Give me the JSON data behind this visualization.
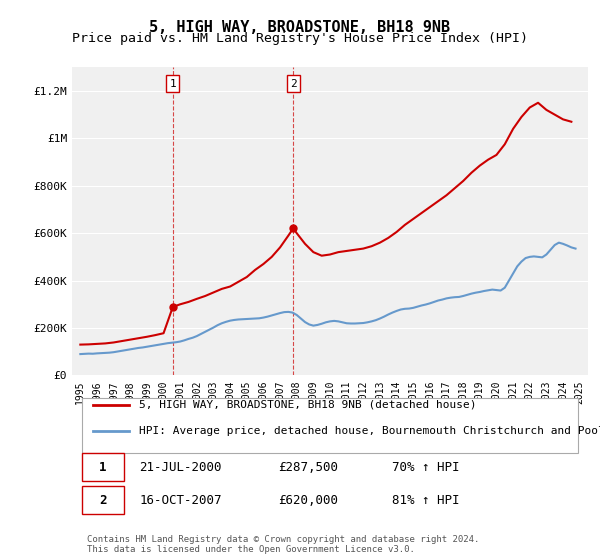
{
  "title": "5, HIGH WAY, BROADSTONE, BH18 9NB",
  "subtitle": "Price paid vs. HM Land Registry's House Price Index (HPI)",
  "title_fontsize": 11,
  "subtitle_fontsize": 9.5,
  "background_color": "#ffffff",
  "plot_bg_color": "#f0f0f0",
  "red_line_color": "#cc0000",
  "blue_line_color": "#6699cc",
  "vline_color": "#cc0000",
  "grid_color": "#ffffff",
  "legend_label_red": "5, HIGH WAY, BROADSTONE, BH18 9NB (detached house)",
  "legend_label_blue": "HPI: Average price, detached house, Bournemouth Christchurch and Poole",
  "sale1_date_num": 2000.55,
  "sale1_price": 287500,
  "sale1_label": "1",
  "sale2_date_num": 2007.79,
  "sale2_price": 620000,
  "sale2_label": "2",
  "annotation1": "1     21-JUL-2000     £287,500     70% ↑ HPI",
  "annotation2": "2     16-OCT-2007     £620,000     81% ↑ HPI",
  "footnote": "Contains HM Land Registry data © Crown copyright and database right 2024.\nThis data is licensed under the Open Government Licence v3.0.",
  "ylim": [
    0,
    1300000
  ],
  "xlim_start": 1994.5,
  "xlim_end": 2025.5,
  "yticks": [
    0,
    200000,
    400000,
    600000,
    800000,
    1000000,
    1200000
  ],
  "ytick_labels": [
    "£0",
    "£200K",
    "£400K",
    "£600K",
    "£800K",
    "£1M",
    "£1.2M"
  ],
  "xtick_years": [
    1995,
    1996,
    1997,
    1998,
    1999,
    2000,
    2001,
    2002,
    2003,
    2004,
    2005,
    2006,
    2007,
    2008,
    2009,
    2010,
    2011,
    2012,
    2013,
    2014,
    2015,
    2016,
    2017,
    2018,
    2019,
    2020,
    2021,
    2022,
    2023,
    2024,
    2025
  ],
  "hpi_years": [
    1995,
    1995.25,
    1995.5,
    1995.75,
    1996,
    1996.25,
    1996.5,
    1996.75,
    1997,
    1997.25,
    1997.5,
    1997.75,
    1998,
    1998.25,
    1998.5,
    1998.75,
    1999,
    1999.25,
    1999.5,
    1999.75,
    2000,
    2000.25,
    2000.5,
    2000.75,
    2001,
    2001.25,
    2001.5,
    2001.75,
    2002,
    2002.25,
    2002.5,
    2002.75,
    2003,
    2003.25,
    2003.5,
    2003.75,
    2004,
    2004.25,
    2004.5,
    2004.75,
    2005,
    2005.25,
    2005.5,
    2005.75,
    2006,
    2006.25,
    2006.5,
    2006.75,
    2007,
    2007.25,
    2007.5,
    2007.75,
    2008,
    2008.25,
    2008.5,
    2008.75,
    2009,
    2009.25,
    2009.5,
    2009.75,
    2010,
    2010.25,
    2010.5,
    2010.75,
    2011,
    2011.25,
    2011.5,
    2011.75,
    2012,
    2012.25,
    2012.5,
    2012.75,
    2013,
    2013.25,
    2013.5,
    2013.75,
    2014,
    2014.25,
    2014.5,
    2014.75,
    2015,
    2015.25,
    2015.5,
    2015.75,
    2016,
    2016.25,
    2016.5,
    2016.75,
    2017,
    2017.25,
    2017.5,
    2017.75,
    2018,
    2018.25,
    2018.5,
    2018.75,
    2019,
    2019.25,
    2019.5,
    2019.75,
    2020,
    2020.25,
    2020.5,
    2020.75,
    2021,
    2021.25,
    2021.5,
    2021.75,
    2022,
    2022.25,
    2022.5,
    2022.75,
    2023,
    2023.25,
    2023.5,
    2023.75,
    2024,
    2024.25,
    2024.5,
    2024.75
  ],
  "hpi_values": [
    90000,
    91000,
    92000,
    91500,
    93000,
    94000,
    95000,
    96000,
    98000,
    101000,
    104000,
    107000,
    110000,
    113000,
    116000,
    118000,
    121000,
    124000,
    127000,
    130000,
    133000,
    136000,
    138000,
    140000,
    143000,
    148000,
    154000,
    159000,
    166000,
    175000,
    184000,
    193000,
    202000,
    212000,
    220000,
    226000,
    231000,
    234000,
    236000,
    237000,
    238000,
    239000,
    240000,
    241000,
    244000,
    248000,
    253000,
    258000,
    263000,
    267000,
    268000,
    265000,
    255000,
    240000,
    225000,
    215000,
    210000,
    213000,
    218000,
    224000,
    228000,
    230000,
    228000,
    224000,
    220000,
    219000,
    219000,
    220000,
    221000,
    224000,
    228000,
    233000,
    240000,
    248000,
    257000,
    265000,
    272000,
    278000,
    281000,
    282000,
    285000,
    290000,
    295000,
    299000,
    304000,
    310000,
    316000,
    320000,
    325000,
    328000,
    330000,
    331000,
    335000,
    340000,
    345000,
    349000,
    352000,
    356000,
    359000,
    362000,
    360000,
    358000,
    370000,
    400000,
    430000,
    460000,
    480000,
    495000,
    500000,
    502000,
    500000,
    498000,
    510000,
    530000,
    550000,
    560000,
    555000,
    548000,
    540000,
    535000
  ],
  "price_paid_years": [
    1995,
    1995.5,
    1996,
    1996.5,
    1997,
    1997.5,
    1998,
    1998.5,
    1999,
    1999.5,
    2000,
    2000.55,
    2000.8,
    2001,
    2001.5,
    2002,
    2002.5,
    2003,
    2003.5,
    2004,
    2004.5,
    2005,
    2005.5,
    2006,
    2006.5,
    2007,
    2007.5,
    2007.79,
    2008,
    2008.5,
    2009,
    2009.5,
    2010,
    2010.5,
    2011,
    2011.5,
    2012,
    2012.5,
    2013,
    2013.5,
    2014,
    2014.5,
    2015,
    2015.5,
    2016,
    2016.5,
    2017,
    2017.5,
    2018,
    2018.5,
    2019,
    2019.5,
    2020,
    2020.5,
    2021,
    2021.5,
    2022,
    2022.5,
    2023,
    2023.5,
    2024,
    2024.5
  ],
  "price_paid_values": [
    130000,
    131000,
    133000,
    135000,
    139000,
    145000,
    151000,
    157000,
    163000,
    170000,
    178000,
    287500,
    295000,
    300000,
    310000,
    323000,
    335000,
    350000,
    365000,
    375000,
    395000,
    415000,
    445000,
    470000,
    500000,
    540000,
    590000,
    620000,
    600000,
    555000,
    520000,
    505000,
    510000,
    520000,
    525000,
    530000,
    535000,
    545000,
    560000,
    580000,
    605000,
    635000,
    660000,
    685000,
    710000,
    735000,
    760000,
    790000,
    820000,
    855000,
    885000,
    910000,
    930000,
    975000,
    1040000,
    1090000,
    1130000,
    1150000,
    1120000,
    1100000,
    1080000,
    1070000
  ]
}
